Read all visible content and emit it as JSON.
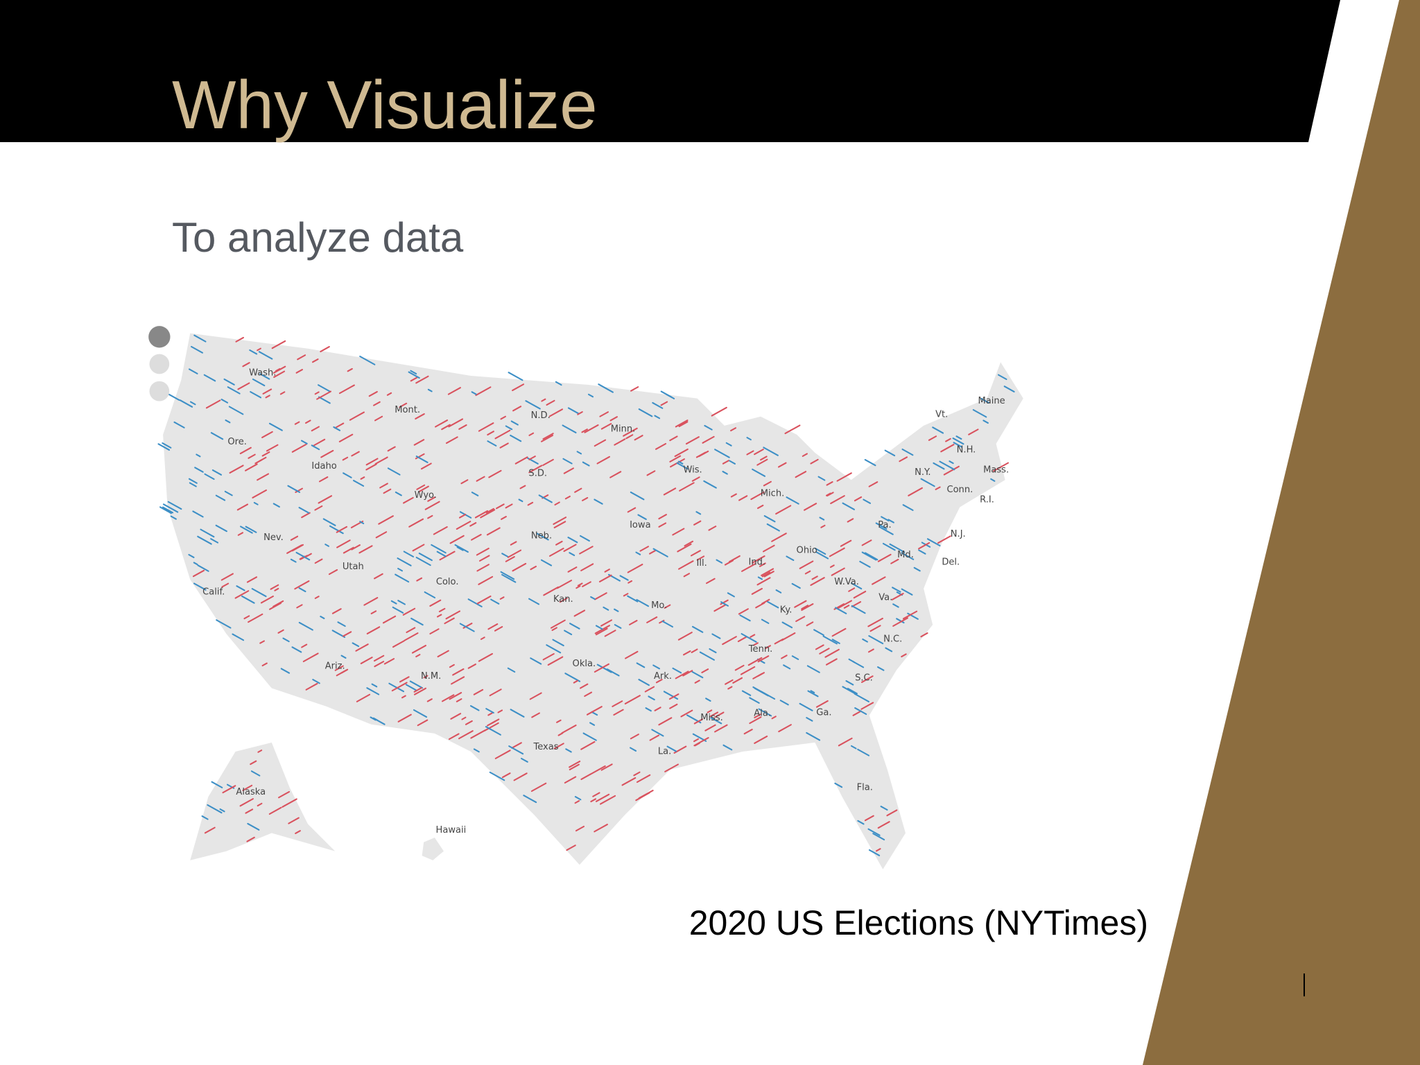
{
  "header": {
    "title": "Why Visualize"
  },
  "body": {
    "subtitle": "To analyze data",
    "map": {
      "labels": [
        "Wash.",
        "Mont.",
        "Ore.",
        "Idaho",
        "Wyo.",
        "Nev.",
        "Utah",
        "Colo.",
        "Calif.",
        "Ariz.",
        "N.M.",
        "N.D.",
        "S.D.",
        "Neb.",
        "Kan.",
        "Okla.",
        "Texas",
        "Minn.",
        "Iowa",
        "Mo.",
        "Ark.",
        "La.",
        "Wis.",
        "Mich.",
        "Ill.",
        "Ind.",
        "Ohio",
        "Ky.",
        "Tenn.",
        "Miss.",
        "Ala.",
        "Ga.",
        "Fla.",
        "S.C.",
        "N.C.",
        "Va.",
        "W.Va.",
        "Pa.",
        "N.Y.",
        "Vt.",
        "Maine",
        "N.H.",
        "Mass.",
        "Conn.",
        "R.I.",
        "N.J.",
        "Md.",
        "Del.",
        "Alaska",
        "Hawaii"
      ]
    },
    "caption": "2020 US Elections (NYTimes)"
  }
}
